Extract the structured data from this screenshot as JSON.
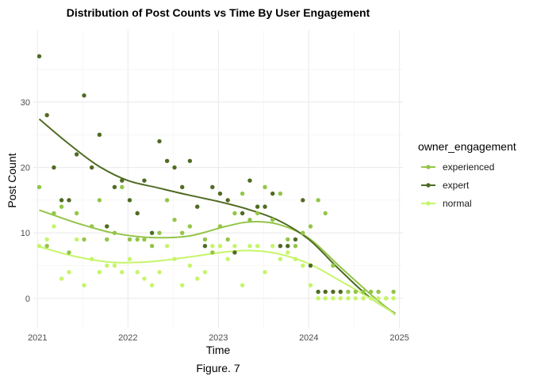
{
  "chart_data": {
    "type": "scatter",
    "title": "Distribution of Post Counts vs Time By User Engagement",
    "xlabel": "Time",
    "ylabel": "Post Count",
    "caption": "Figure. 7",
    "x_type": "date",
    "xlim": [
      "2020-12-15",
      "2025-01-15"
    ],
    "ylim": [
      -4.5,
      41
    ],
    "x_ticks": [
      {
        "value": "2021-01-01",
        "label": "2021"
      },
      {
        "value": "2022-01-01",
        "label": "2022"
      },
      {
        "value": "2023-01-01",
        "label": "2023"
      },
      {
        "value": "2024-01-01",
        "label": "2024"
      },
      {
        "value": "2025-01-01",
        "label": "2025"
      }
    ],
    "y_ticks": [
      0,
      10,
      20,
      30
    ],
    "grid": true,
    "legend": {
      "title": "owner_engagement",
      "placement": "right"
    },
    "series": [
      {
        "name": "experienced",
        "color": "#93c547",
        "points": [
          [
            "2021-01-08",
            17
          ],
          [
            "2021-02-08",
            8
          ],
          [
            "2021-03-08",
            13
          ],
          [
            "2021-04-08",
            14
          ],
          [
            "2021-05-08",
            7
          ],
          [
            "2021-06-08",
            13
          ],
          [
            "2021-07-08",
            9
          ],
          [
            "2021-08-08",
            11
          ],
          [
            "2021-09-08",
            15
          ],
          [
            "2021-10-08",
            9
          ],
          [
            "2021-11-08",
            10
          ],
          [
            "2021-12-08",
            17
          ],
          [
            "2022-01-08",
            9
          ],
          [
            "2022-02-08",
            9
          ],
          [
            "2022-03-08",
            9
          ],
          [
            "2022-04-08",
            8
          ],
          [
            "2022-05-08",
            10
          ],
          [
            "2022-06-08",
            15
          ],
          [
            "2022-07-08",
            12
          ],
          [
            "2022-08-08",
            10
          ],
          [
            "2022-09-08",
            11
          ],
          [
            "2022-10-08",
            14
          ],
          [
            "2022-11-08",
            9
          ],
          [
            "2022-12-08",
            7
          ],
          [
            "2023-01-08",
            11
          ],
          [
            "2023-02-08",
            9
          ],
          [
            "2023-03-08",
            13
          ],
          [
            "2023-04-08",
            16
          ],
          [
            "2023-05-08",
            12
          ],
          [
            "2023-06-08",
            13
          ],
          [
            "2023-07-08",
            17
          ],
          [
            "2023-08-08",
            12
          ],
          [
            "2023-09-08",
            16
          ],
          [
            "2023-10-08",
            9
          ],
          [
            "2023-11-08",
            8
          ],
          [
            "2023-12-08",
            10
          ],
          [
            "2024-01-08",
            11
          ],
          [
            "2024-02-08",
            15
          ],
          [
            "2024-03-08",
            13
          ],
          [
            "2024-04-08",
            5
          ],
          [
            "2024-05-08",
            1
          ],
          [
            "2024-06-08",
            1
          ],
          [
            "2024-07-08",
            1
          ],
          [
            "2024-08-08",
            1
          ],
          [
            "2024-09-08",
            1
          ],
          [
            "2024-10-08",
            1
          ],
          [
            "2024-11-08",
            0
          ],
          [
            "2024-12-08",
            1
          ]
        ],
        "smooth": [
          [
            "2021-01-08",
            13.5
          ],
          [
            "2021-06-01",
            11.6
          ],
          [
            "2021-11-01",
            10.0
          ],
          [
            "2022-04-01",
            9.3
          ],
          [
            "2022-09-01",
            9.5
          ],
          [
            "2023-02-01",
            11.0
          ],
          [
            "2023-05-15",
            11.7
          ],
          [
            "2023-09-01",
            11.3
          ],
          [
            "2024-01-01",
            9.2
          ],
          [
            "2024-05-01",
            5.0
          ],
          [
            "2024-09-01",
            0.8
          ],
          [
            "2024-12-15",
            -2.5
          ]
        ]
      },
      {
        "name": "expert",
        "color": "#4f6b22",
        "points": [
          [
            "2021-01-08",
            37
          ],
          [
            "2021-02-08",
            28
          ],
          [
            "2021-03-08",
            20
          ],
          [
            "2021-04-08",
            15
          ],
          [
            "2021-05-08",
            15
          ],
          [
            "2021-06-08",
            22
          ],
          [
            "2021-07-08",
            31
          ],
          [
            "2021-08-08",
            20
          ],
          [
            "2021-09-08",
            25
          ],
          [
            "2021-10-08",
            11
          ],
          [
            "2021-11-08",
            17
          ],
          [
            "2021-12-08",
            18
          ],
          [
            "2022-01-08",
            15
          ],
          [
            "2022-02-08",
            13
          ],
          [
            "2022-03-08",
            18
          ],
          [
            "2022-04-08",
            10
          ],
          [
            "2022-05-08",
            24
          ],
          [
            "2022-06-08",
            21
          ],
          [
            "2022-07-08",
            20
          ],
          [
            "2022-08-08",
            17
          ],
          [
            "2022-09-08",
            21
          ],
          [
            "2022-10-08",
            14
          ],
          [
            "2022-11-08",
            8
          ],
          [
            "2022-12-08",
            17
          ],
          [
            "2023-01-08",
            16
          ],
          [
            "2023-02-08",
            15
          ],
          [
            "2023-03-08",
            7
          ],
          [
            "2023-04-08",
            13
          ],
          [
            "2023-05-08",
            18
          ],
          [
            "2023-06-08",
            14
          ],
          [
            "2023-07-08",
            14
          ],
          [
            "2023-08-08",
            16
          ],
          [
            "2023-09-08",
            8
          ],
          [
            "2023-10-08",
            8
          ],
          [
            "2023-11-08",
            9
          ],
          [
            "2023-12-08",
            15
          ],
          [
            "2024-01-08",
            5
          ],
          [
            "2024-02-08",
            1
          ],
          [
            "2024-03-08",
            1
          ],
          [
            "2024-04-08",
            1
          ],
          [
            "2024-05-08",
            1
          ]
        ],
        "smooth": [
          [
            "2021-01-08",
            27.4
          ],
          [
            "2021-05-01",
            23.8
          ],
          [
            "2021-09-01",
            20.3
          ],
          [
            "2022-01-01",
            18.0
          ],
          [
            "2022-05-01",
            16.9
          ],
          [
            "2022-09-01",
            15.8
          ],
          [
            "2023-01-01",
            14.8
          ],
          [
            "2023-05-01",
            13.6
          ],
          [
            "2023-09-01",
            11.9
          ],
          [
            "2024-01-01",
            9.0
          ],
          [
            "2024-05-01",
            4.5
          ],
          [
            "2024-09-01",
            0.2
          ],
          [
            "2024-12-15",
            -2.3
          ]
        ]
      },
      {
        "name": "normal",
        "color": "#c6f569",
        "points": [
          [
            "2021-01-08",
            8
          ],
          [
            "2021-02-08",
            9
          ],
          [
            "2021-03-08",
            11
          ],
          [
            "2021-04-08",
            3
          ],
          [
            "2021-05-08",
            4
          ],
          [
            "2021-06-08",
            9
          ],
          [
            "2021-07-08",
            2
          ],
          [
            "2021-08-08",
            6
          ],
          [
            "2021-09-08",
            4
          ],
          [
            "2021-10-08",
            5
          ],
          [
            "2021-11-08",
            5
          ],
          [
            "2021-12-08",
            4
          ],
          [
            "2022-01-08",
            6
          ],
          [
            "2022-02-08",
            4
          ],
          [
            "2022-03-08",
            3
          ],
          [
            "2022-04-08",
            2
          ],
          [
            "2022-05-08",
            4
          ],
          [
            "2022-06-08",
            8
          ],
          [
            "2022-07-08",
            6
          ],
          [
            "2022-08-08",
            2
          ],
          [
            "2022-09-08",
            5
          ],
          [
            "2022-10-08",
            3
          ],
          [
            "2022-11-08",
            4
          ],
          [
            "2022-12-08",
            8
          ],
          [
            "2023-01-08",
            8
          ],
          [
            "2023-02-08",
            6
          ],
          [
            "2023-03-08",
            8
          ],
          [
            "2023-04-08",
            2
          ],
          [
            "2023-05-08",
            8
          ],
          [
            "2023-06-08",
            8
          ],
          [
            "2023-07-08",
            4
          ],
          [
            "2023-08-08",
            8
          ],
          [
            "2023-09-08",
            6
          ],
          [
            "2023-10-08",
            7
          ],
          [
            "2023-11-08",
            6
          ],
          [
            "2023-12-08",
            5
          ],
          [
            "2024-01-08",
            2
          ],
          [
            "2024-02-08",
            0
          ],
          [
            "2024-03-08",
            0
          ],
          [
            "2024-04-08",
            0
          ],
          [
            "2024-05-08",
            0
          ],
          [
            "2024-06-08",
            0
          ],
          [
            "2024-07-08",
            0
          ],
          [
            "2024-08-08",
            0
          ],
          [
            "2024-09-08",
            0
          ],
          [
            "2024-10-08",
            0
          ],
          [
            "2024-11-08",
            0
          ],
          [
            "2024-12-08",
            0
          ]
        ],
        "smooth": [
          [
            "2021-01-08",
            7.9
          ],
          [
            "2021-06-01",
            6.4
          ],
          [
            "2021-11-01",
            5.5
          ],
          [
            "2022-04-01",
            5.6
          ],
          [
            "2022-09-01",
            6.3
          ],
          [
            "2023-02-01",
            7.1
          ],
          [
            "2023-05-15",
            7.3
          ],
          [
            "2023-09-01",
            6.8
          ],
          [
            "2024-01-01",
            5.3
          ],
          [
            "2024-05-01",
            2.8
          ],
          [
            "2024-09-01",
            0.1
          ],
          [
            "2024-12-15",
            -2.4
          ]
        ]
      }
    ]
  }
}
